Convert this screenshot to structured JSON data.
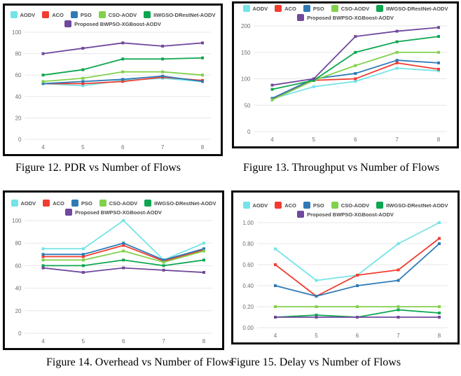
{
  "page": {
    "background": "#ffffff"
  },
  "styles": {
    "panel_border": "#0a0a0a",
    "gridline": "#e7e7e7",
    "tick_text": "#6e6e6e",
    "legend_text": "#4a4a4a"
  },
  "series_colors": {
    "AODV": "#74e4e8",
    "ACO": "#f23c30",
    "PSO": "#2f7ab6",
    "CSO-AODV": "#82d14b",
    "IIWGSO-DRestNet-AODV": "#0ca750",
    "Proposed BWPSO-XGBoost-AODV": "#70489d"
  },
  "chart_data": [
    {
      "id": "figure-12",
      "type": "line",
      "caption": "Figure 12. PDR vs Number of Flows",
      "x": [
        4,
        5,
        6,
        7,
        8
      ],
      "x_tick_labels": [
        "4",
        "5",
        "6",
        "7",
        "8"
      ],
      "ylim": [
        0,
        100
      ],
      "yticks": [
        0,
        20,
        40,
        60,
        80,
        100
      ],
      "ytick_labels": [
        "0",
        "20",
        "40",
        "60",
        "80",
        "100"
      ],
      "grid": "horizontal",
      "legend_position": "top-center",
      "legend_rows": [
        [
          "AODV",
          "ACO",
          "PSO",
          "CSO-AODV",
          "IIWGSO-DRestNet-AODV"
        ],
        [
          "Proposed BWPSO-XGBoost-AODV"
        ]
      ],
      "layout": {
        "legend_top": 8
      },
      "series": [
        {
          "name": "AODV",
          "color": "#74e4e8",
          "values": [
            52,
            50,
            55,
            57,
            54
          ]
        },
        {
          "name": "ACO",
          "color": "#f23c30",
          "values": [
            52,
            52,
            54,
            58,
            55
          ]
        },
        {
          "name": "PSO",
          "color": "#2f7ab6",
          "values": [
            52,
            54,
            56,
            59,
            54
          ]
        },
        {
          "name": "CSO-AODV",
          "color": "#82d14b",
          "values": [
            54,
            57,
            63,
            63,
            60
          ]
        },
        {
          "name": "IIWGSO-DRestNet-AODV",
          "color": "#0ca750",
          "values": [
            60,
            65,
            75,
            75,
            76
          ]
        },
        {
          "name": "Proposed BWPSO-XGBoost-AODV",
          "color": "#70489d",
          "values": [
            80,
            85,
            90,
            87,
            90
          ]
        }
      ]
    },
    {
      "id": "figure-13",
      "type": "line",
      "caption": "Figure 13. Throughput vs Number of Flows",
      "x": [
        4,
        5,
        6,
        7,
        8
      ],
      "x_tick_labels": [
        "4",
        "5",
        "6",
        "7",
        "8"
      ],
      "ylim": [
        0,
        200
      ],
      "yticks": [
        0,
        50,
        100,
        150,
        200
      ],
      "ytick_labels": [
        "0",
        "50",
        "100",
        "150",
        "200"
      ],
      "grid": "horizontal",
      "legend_position": "top-center",
      "legend_rows": [
        [
          "AODV",
          "ACO",
          "PSO",
          "CSO-AODV",
          "IIWGSO-DRestNet-AODV"
        ],
        [
          "Proposed BWPSO-XGBoost-AODV"
        ]
      ],
      "layout": {
        "legend_top": 2
      },
      "series": [
        {
          "name": "AODV",
          "color": "#74e4e8",
          "values": [
            62,
            85,
            95,
            120,
            115
          ]
        },
        {
          "name": "ACO",
          "color": "#f23c30",
          "values": [
            62,
            97,
            100,
            130,
            118
          ]
        },
        {
          "name": "PSO",
          "color": "#2f7ab6",
          "values": [
            63,
            100,
            110,
            135,
            130
          ]
        },
        {
          "name": "CSO-AODV",
          "color": "#82d14b",
          "values": [
            60,
            97,
            125,
            150,
            150
          ]
        },
        {
          "name": "IIWGSO-DRestNet-AODV",
          "color": "#0ca750",
          "values": [
            80,
            97,
            150,
            170,
            180
          ]
        },
        {
          "name": "Proposed BWPSO-XGBoost-AODV",
          "color": "#70489d",
          "values": [
            88,
            100,
            180,
            190,
            197
          ]
        }
      ]
    },
    {
      "id": "figure-14",
      "type": "line",
      "caption": "Figure 14. Overhead vs Number of Flows",
      "x": [
        4,
        5,
        6,
        7,
        8
      ],
      "x_tick_labels": [
        "4",
        "5",
        "6",
        "7",
        "8"
      ],
      "ylim": [
        0,
        100
      ],
      "yticks": [
        0,
        20,
        40,
        60,
        80,
        100
      ],
      "ytick_labels": [
        "0",
        "20",
        "40",
        "60",
        "80",
        "100"
      ],
      "grid": "horizontal",
      "legend_position": "top-center",
      "legend_rows": [
        [
          "AODV",
          "ACO",
          "PSO",
          "CSO-AODV",
          "IIWGSO-DRestNet-AODV"
        ],
        [
          "Proposed BWPSO-XGBoost-AODV"
        ]
      ],
      "layout": {
        "legend_top": 10
      },
      "series": [
        {
          "name": "AODV",
          "color": "#74e4e8",
          "values": [
            75,
            75,
            100,
            65,
            80
          ]
        },
        {
          "name": "ACO",
          "color": "#f23c30",
          "values": [
            68,
            68,
            78,
            64,
            74
          ]
        },
        {
          "name": "PSO",
          "color": "#2f7ab6",
          "values": [
            70,
            70,
            80,
            65,
            75
          ]
        },
        {
          "name": "CSO-AODV",
          "color": "#82d14b",
          "values": [
            65,
            65,
            73,
            63,
            73
          ]
        },
        {
          "name": "IIWGSO-DRestNet-AODV",
          "color": "#0ca750",
          "values": [
            60,
            60,
            65,
            60,
            65
          ]
        },
        {
          "name": "Proposed BWPSO-XGBoost-AODV",
          "color": "#70489d",
          "values": [
            58,
            54,
            58,
            56,
            54
          ]
        }
      ]
    },
    {
      "id": "figure-15",
      "type": "line",
      "caption": "Figure 15. Delay vs Number of Flows",
      "x": [
        4,
        5,
        6,
        7,
        8
      ],
      "x_tick_labels": [
        "4",
        "5",
        "6",
        "7",
        "8"
      ],
      "ylim": [
        0,
        1.0
      ],
      "yticks": [
        0,
        0.2,
        0.4,
        0.6,
        0.8,
        1.0
      ],
      "ytick_labels": [
        "0.00",
        "0.20",
        "0.40",
        "0.60",
        "0.80",
        "1.00"
      ],
      "grid": "horizontal",
      "legend_position": "top-center",
      "legend_rows": [
        [
          "AODV",
          "ACO",
          "PSO",
          "CSO-AODV",
          "IIWGSO-DRestNet-AODV"
        ],
        [
          "Proposed BWPSO-XGBoost-AODV"
        ]
      ],
      "layout": {
        "legend_top": 13
      },
      "series": [
        {
          "name": "AODV",
          "color": "#74e4e8",
          "values": [
            0.75,
            0.45,
            0.5,
            0.8,
            1.0
          ]
        },
        {
          "name": "ACO",
          "color": "#f23c30",
          "values": [
            0.6,
            0.3,
            0.5,
            0.55,
            0.85
          ]
        },
        {
          "name": "PSO",
          "color": "#2f7ab6",
          "values": [
            0.4,
            0.3,
            0.4,
            0.45,
            0.8
          ]
        },
        {
          "name": "CSO-AODV",
          "color": "#82d14b",
          "values": [
            0.2,
            0.2,
            0.2,
            0.2,
            0.2
          ]
        },
        {
          "name": "IIWGSO-DRestNet-AODV",
          "color": "#0ca750",
          "values": [
            0.1,
            0.12,
            0.1,
            0.17,
            0.14
          ]
        },
        {
          "name": "Proposed BWPSO-XGBoost-AODV",
          "color": "#70489d",
          "values": [
            0.1,
            0.1,
            0.1,
            0.1,
            0.1
          ]
        }
      ]
    }
  ]
}
